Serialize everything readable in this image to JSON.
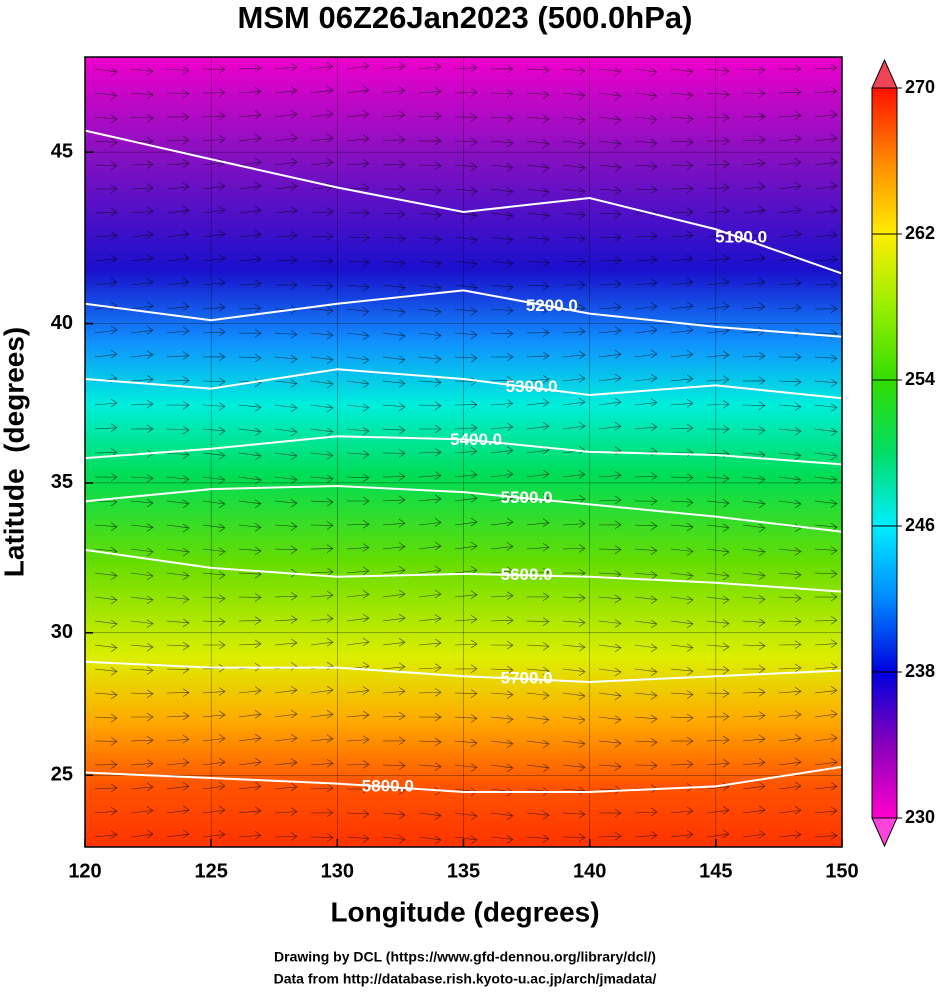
{
  "chart_data": {
    "type": "map",
    "title": "MSM 06Z26Jan2023 (500.0hPa)",
    "x_label": "Longitude (degrees)",
    "y_label": "Latitude  (degrees)",
    "projection": "mercator",
    "xlim": [
      120,
      150
    ],
    "ylim": [
      22.4,
      47.6
    ],
    "xticks": [
      120,
      125,
      130,
      135,
      140,
      145,
      150
    ],
    "yticks": [
      25,
      30,
      35,
      40,
      45
    ],
    "grid": true,
    "colorbar": {
      "lim": [
        230,
        270
      ],
      "ticks": [
        230,
        238,
        246,
        254,
        262,
        270
      ]
    },
    "contour_x": [
      120,
      125,
      130,
      135,
      140,
      145,
      150
    ],
    "contours": [
      {
        "level": 5100,
        "label": "5100.0",
        "color": "#ffffff",
        "lats": [
          45.6,
          44.8,
          44.0,
          43.3,
          43.7,
          42.8,
          41.5
        ]
      },
      {
        "level": 5200,
        "label": "5200.0",
        "color": "#ffffff",
        "lats": [
          40.6,
          40.1,
          40.6,
          41.0,
          40.3,
          39.9,
          39.6
        ]
      },
      {
        "level": 5300,
        "label": "5300.0",
        "color": "#ffffff",
        "lats": [
          38.3,
          38.0,
          38.6,
          38.3,
          37.8,
          38.1,
          37.7
        ]
      },
      {
        "level": 5400,
        "label": "5400.0",
        "color": "#ffffff",
        "lats": [
          35.8,
          36.1,
          36.5,
          36.4,
          36.0,
          35.9,
          35.6
        ]
      },
      {
        "level": 5500,
        "label": "5500.0",
        "color": "#ffffff",
        "lats": [
          34.4,
          34.8,
          34.9,
          34.7,
          34.3,
          33.9,
          33.4
        ]
      },
      {
        "level": 5600,
        "label": "5600.0",
        "color": "#ffffff",
        "lats": [
          32.8,
          32.2,
          31.9,
          32.0,
          31.9,
          31.7,
          31.4
        ]
      },
      {
        "level": 5700,
        "label": "5700.0",
        "color": "#ffffff",
        "lats": [
          29.0,
          28.8,
          28.8,
          28.5,
          28.3,
          28.5,
          28.7
        ]
      },
      {
        "level": 5800,
        "label": "5800.0",
        "color": "#ffffff",
        "lats": [
          25.1,
          24.9,
          24.7,
          24.4,
          24.4,
          24.6,
          25.3
        ]
      }
    ],
    "footer": [
      "Drawing by DCL (https://www.gfd-dennou.org/library/dcl/)",
      "Data from http://database.rish.kyoto-u.ac.jp/arch/jmadata/"
    ]
  }
}
